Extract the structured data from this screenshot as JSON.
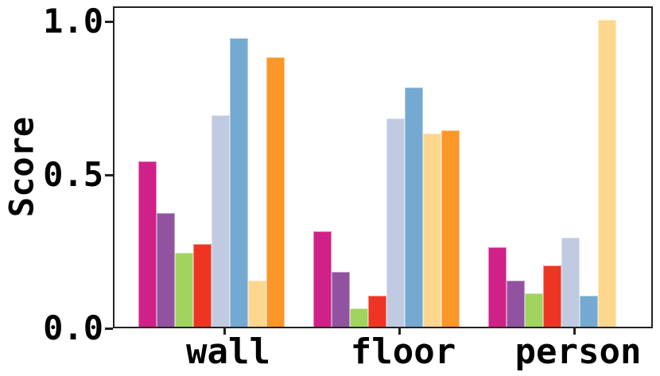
{
  "figure": {
    "background": "#ffffff",
    "spine_color": "#222222",
    "text_color": "#000000"
  },
  "chart_data": {
    "type": "bar",
    "title": "",
    "xlabel": "",
    "ylabel": "Score",
    "categories": [
      "wall",
      "floor",
      "person"
    ],
    "series": [
      {
        "name": "magenta-series",
        "color": "#D02189",
        "values": [
          0.54,
          0.31,
          0.26
        ]
      },
      {
        "name": "purple-series",
        "color": "#9153A0",
        "values": [
          0.37,
          0.18,
          0.15
        ]
      },
      {
        "name": "green-series",
        "color": "#A0D45F",
        "values": [
          0.24,
          0.06,
          0.11
        ]
      },
      {
        "name": "red-series",
        "color": "#EE3524",
        "values": [
          0.27,
          0.1,
          0.2
        ]
      },
      {
        "name": "lavender-series",
        "color": "#C0CBE1",
        "values": [
          0.69,
          0.68,
          0.29
        ]
      },
      {
        "name": "steelblue-series",
        "color": "#74A9D1",
        "values": [
          0.94,
          0.78,
          0.1
        ]
      },
      {
        "name": "paleyellow-series",
        "color": "#FDD78E",
        "values": [
          0.15,
          0.63,
          1.0
        ]
      },
      {
        "name": "orange-series",
        "color": "#FB9629",
        "values": [
          0.88,
          0.64,
          0.0
        ]
      }
    ],
    "yticks": [
      "0.0",
      "0.5",
      "1.0"
    ],
    "ytick_values": [
      0.0,
      0.5,
      1.0
    ],
    "ylim": [
      0,
      1.05
    ],
    "grid": false,
    "legend": "none"
  }
}
